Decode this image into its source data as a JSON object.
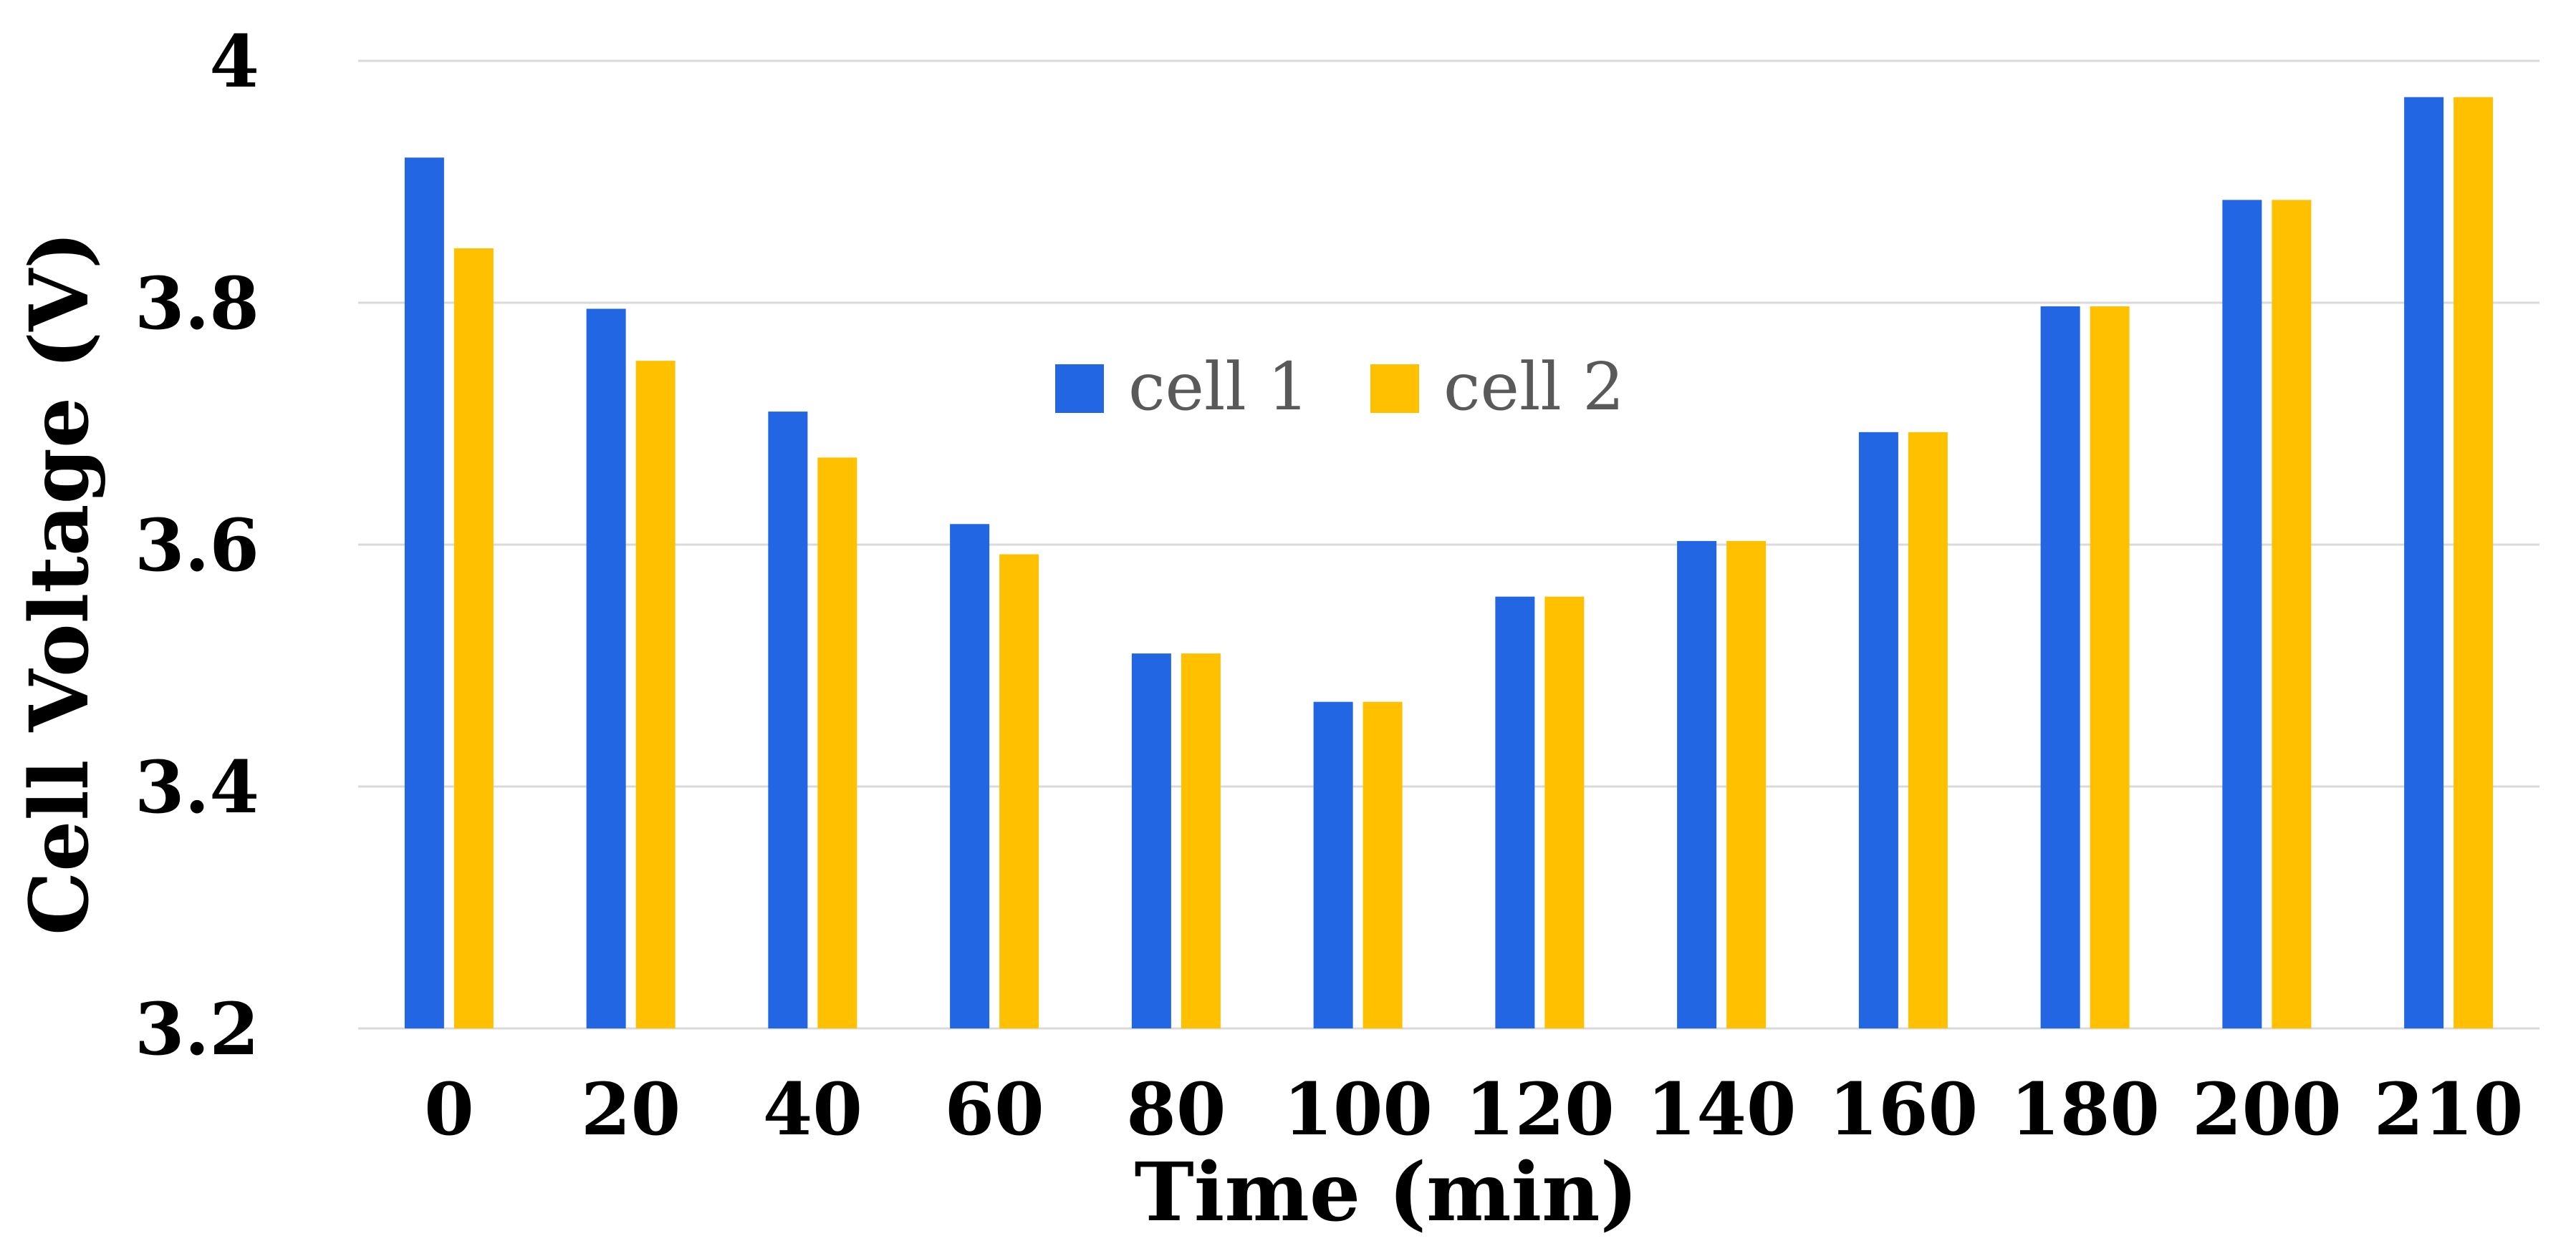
{
  "chart_data": {
    "type": "bar",
    "xlabel": "Time (min)",
    "ylabel": "Cell Voltage (V)",
    "categories": [
      "0",
      "20",
      "40",
      "60",
      "80",
      "100",
      "120",
      "140",
      "160",
      "180",
      "200",
      "210"
    ],
    "series": [
      {
        "name": "cell 1",
        "color": "#2266e3",
        "values": [
          3.92,
          3.795,
          3.71,
          3.617,
          3.51,
          3.47,
          3.557,
          3.603,
          3.693,
          3.797,
          3.885,
          3.97
        ]
      },
      {
        "name": "cell 2",
        "color": "#ffc000",
        "values": [
          3.845,
          3.752,
          3.672,
          3.592,
          3.51,
          3.47,
          3.557,
          3.603,
          3.693,
          3.797,
          3.885,
          3.97
        ]
      }
    ],
    "ylim": [
      3.2,
      4
    ],
    "yticks": [
      "3.2",
      "3.4",
      "3.6",
      "3.8",
      "4"
    ],
    "ytick_values": [
      3.2,
      3.4,
      3.6,
      3.8,
      4.0
    ],
    "grid": true,
    "legend": "top-center"
  }
}
